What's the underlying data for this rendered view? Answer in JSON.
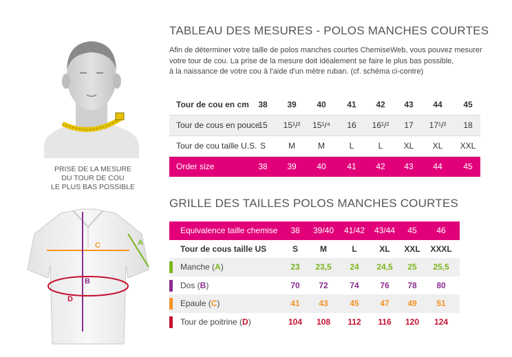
{
  "title1": "TABLEAU DES MESURES - POLOS MANCHES COURTES",
  "intro": [
    "Afin de déterminer votre taille de polos manches courtes ChemiseWeb, vous pouvez mesurer",
    "votre tour de cou. La prise de la mesure doit idéalement se faire le plus bas possible,",
    "à la naissance de votre cou à l'aide d'un mètre ruban. (cf. schéma ci-contre)"
  ],
  "caption": [
    "PRISE DE LA MESURE",
    "DU TOUR DE COU",
    "LE PLUS BAS POSSIBLE"
  ],
  "table1": {
    "rows": [
      {
        "label": "Tour de cou en cm",
        "cells": [
          "38",
          "39",
          "40",
          "41",
          "42",
          "43",
          "44",
          "45"
        ]
      },
      {
        "label": "Tour de cous en pouce",
        "cells": [
          "15",
          "15¹/²",
          "15¹/⁴",
          "16",
          "16¹/²",
          "17",
          "17¹/²",
          "18"
        ]
      },
      {
        "label": "Tour de cou taille U.S.",
        "cells": [
          "S",
          "M",
          "M",
          "L",
          "L",
          "XL",
          "XL",
          "XXL"
        ]
      },
      {
        "label": "Order size",
        "cells": [
          "38",
          "39",
          "40",
          "41",
          "42",
          "43",
          "44",
          "45"
        ]
      }
    ]
  },
  "title2": "GRILLE DES TAILLES  POLOS MANCHES COURTES",
  "table2": {
    "equiv": {
      "label": "Equivalence taille chemise",
      "cells": [
        "38",
        "39/40",
        "41/42",
        "43/44",
        "45",
        "46"
      ]
    },
    "header": {
      "label": "Tour de cous taille US",
      "cells": [
        "S",
        "M",
        "L",
        "XL",
        "XXL",
        "XXXL"
      ]
    },
    "measures": [
      {
        "label": "Manche (",
        "letter": "A",
        "close": ")",
        "color": "#7ab51d",
        "cells": [
          "23",
          "23,5",
          "24",
          "24,5",
          "25",
          "25,5"
        ]
      },
      {
        "label": "Dos (",
        "letter": "B",
        "close": ")",
        "color": "#8b2c8f",
        "cells": [
          "70",
          "72",
          "74",
          "76",
          "78",
          "80"
        ]
      },
      {
        "label": "Epaule (",
        "letter": "C",
        "close": ")",
        "color": "#f39325",
        "cells": [
          "41",
          "43",
          "45",
          "47",
          "49",
          "51"
        ]
      },
      {
        "label": "Tour de poitrine (",
        "letter": "D",
        "close": ")",
        "color": "#c4122f",
        "cells": [
          "104",
          "108",
          "112",
          "116",
          "120",
          "124"
        ]
      }
    ]
  },
  "diagram_labels": {
    "a": "A",
    "b": "B",
    "c": "C",
    "d": "D"
  },
  "colors": {
    "accent": "#e2007a",
    "row_shade": "#efefef"
  }
}
